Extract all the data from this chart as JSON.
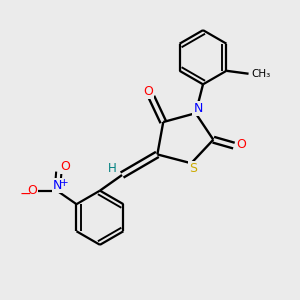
{
  "bg_color": "#ebebeb",
  "atom_colors": {
    "C": "#000000",
    "N": "#0000ff",
    "O": "#ff0000",
    "S": "#ccaa00",
    "H": "#008080"
  },
  "bond_color": "#000000",
  "figsize": [
    3.0,
    3.0
  ],
  "dpi": 100,
  "xlim": [
    0,
    10
  ],
  "ylim": [
    0,
    10
  ]
}
